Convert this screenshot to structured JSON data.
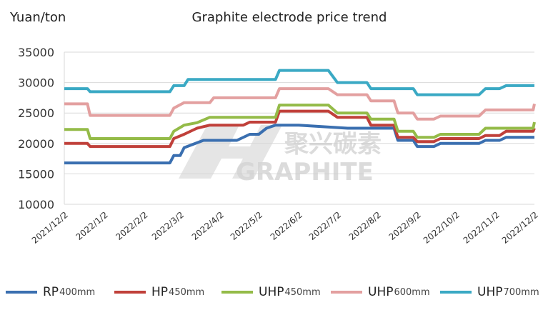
{
  "chart_data": {
    "type": "line",
    "title": "Graphite electrode price trend",
    "ylabel": "Yuan/ton",
    "xlabel": "",
    "ylim": [
      10000,
      35000
    ],
    "yticks": [
      10000,
      15000,
      20000,
      25000,
      30000,
      35000
    ],
    "xticks": [
      "2021/12/2",
      "2022/1/2",
      "2022/2/2",
      "2022/3/2",
      "2022/4/2",
      "2022/5/2",
      "2022/6/2",
      "2022/7/2",
      "2022/8/2",
      "2022/9/2",
      "2022/10/2",
      "2022/11/2",
      "2022/12/2"
    ],
    "grid": "horizontal",
    "legend_position": "bottom",
    "series": [
      {
        "name": "RP",
        "size": "400mm",
        "color": "#3a6fb0",
        "points": [
          [
            "2021/12/2",
            16800
          ],
          [
            "2022/2/22",
            16800
          ],
          [
            "2022/2/25",
            18000
          ],
          [
            "2022/3/2",
            18000
          ],
          [
            "2022/3/5",
            19300
          ],
          [
            "2022/3/20",
            20500
          ],
          [
            "2022/4/15",
            20500
          ],
          [
            "2022/4/25",
            21500
          ],
          [
            "2022/5/2",
            21500
          ],
          [
            "2022/5/8",
            22500
          ],
          [
            "2022/5/15",
            23000
          ],
          [
            "2022/6/2",
            23000
          ],
          [
            "2022/7/10",
            22500
          ],
          [
            "2022/8/15",
            22500
          ],
          [
            "2022/8/18",
            20500
          ],
          [
            "2022/8/30",
            20500
          ],
          [
            "2022/9/2",
            19500
          ],
          [
            "2022/9/15",
            19500
          ],
          [
            "2022/9/20",
            20000
          ],
          [
            "2022/10/20",
            20000
          ],
          [
            "2022/10/25",
            20500
          ],
          [
            "2022/11/5",
            20500
          ],
          [
            "2022/11/10",
            21000
          ],
          [
            "2022/12/2",
            21000
          ]
        ]
      },
      {
        "name": "HP",
        "size": "450mm",
        "color": "#c0403a",
        "points": [
          [
            "2021/12/2",
            20000
          ],
          [
            "2021/12/20",
            20000
          ],
          [
            "2021/12/22",
            19500
          ],
          [
            "2022/2/22",
            19500
          ],
          [
            "2022/2/25",
            20800
          ],
          [
            "2022/3/5",
            21500
          ],
          [
            "2022/3/15",
            22500
          ],
          [
            "2022/3/25",
            23000
          ],
          [
            "2022/4/20",
            23000
          ],
          [
            "2022/4/25",
            23500
          ],
          [
            "2022/5/15",
            23500
          ],
          [
            "2022/5/18",
            25300
          ],
          [
            "2022/6/25",
            25300
          ],
          [
            "2022/7/2",
            24300
          ],
          [
            "2022/7/25",
            24300
          ],
          [
            "2022/7/28",
            23000
          ],
          [
            "2022/8/15",
            23000
          ],
          [
            "2022/8/18",
            21000
          ],
          [
            "2022/8/30",
            21000
          ],
          [
            "2022/9/2",
            20300
          ],
          [
            "2022/9/15",
            20300
          ],
          [
            "2022/9/20",
            20800
          ],
          [
            "2022/10/20",
            20800
          ],
          [
            "2022/10/25",
            21300
          ],
          [
            "2022/11/5",
            21300
          ],
          [
            "2022/11/10",
            22000
          ],
          [
            "2022/12/1",
            22000
          ],
          [
            "2022/12/2",
            22500
          ]
        ]
      },
      {
        "name": "UHP",
        "size": "450mm",
        "color": "#94bb48",
        "points": [
          [
            "2021/12/2",
            22300
          ],
          [
            "2021/12/20",
            22300
          ],
          [
            "2021/12/22",
            20800
          ],
          [
            "2022/2/22",
            20800
          ],
          [
            "2022/2/25",
            22000
          ],
          [
            "2022/3/5",
            23000
          ],
          [
            "2022/3/15",
            23400
          ],
          [
            "2022/3/25",
            24300
          ],
          [
            "2022/4/20",
            24300
          ],
          [
            "2022/5/15",
            24300
          ],
          [
            "2022/5/18",
            26300
          ],
          [
            "2022/6/25",
            26300
          ],
          [
            "2022/7/2",
            25000
          ],
          [
            "2022/7/25",
            25000
          ],
          [
            "2022/7/28",
            24000
          ],
          [
            "2022/8/15",
            24000
          ],
          [
            "2022/8/18",
            22000
          ],
          [
            "2022/8/30",
            22000
          ],
          [
            "2022/9/2",
            21000
          ],
          [
            "2022/9/15",
            21000
          ],
          [
            "2022/9/20",
            21500
          ],
          [
            "2022/10/20",
            21500
          ],
          [
            "2022/10/25",
            22500
          ],
          [
            "2022/12/1",
            22500
          ],
          [
            "2022/12/2",
            23500
          ]
        ]
      },
      {
        "name": "UHP",
        "size": "600mm",
        "color": "#e3a0a0",
        "points": [
          [
            "2021/12/2",
            26500
          ],
          [
            "2021/12/20",
            26500
          ],
          [
            "2021/12/22",
            24600
          ],
          [
            "2022/2/22",
            24600
          ],
          [
            "2022/2/25",
            25800
          ],
          [
            "2022/3/5",
            26700
          ],
          [
            "2022/3/25",
            26700
          ],
          [
            "2022/3/28",
            27500
          ],
          [
            "2022/5/15",
            27500
          ],
          [
            "2022/5/18",
            29000
          ],
          [
            "2022/6/25",
            29000
          ],
          [
            "2022/7/2",
            28000
          ],
          [
            "2022/7/25",
            28000
          ],
          [
            "2022/7/28",
            27000
          ],
          [
            "2022/8/15",
            27000
          ],
          [
            "2022/8/18",
            25000
          ],
          [
            "2022/8/30",
            25000
          ],
          [
            "2022/9/2",
            24000
          ],
          [
            "2022/9/15",
            24000
          ],
          [
            "2022/9/20",
            24500
          ],
          [
            "2022/10/20",
            24500
          ],
          [
            "2022/10/25",
            25500
          ],
          [
            "2022/12/1",
            25500
          ],
          [
            "2022/12/2",
            26500
          ]
        ]
      },
      {
        "name": "UHP",
        "size": "700mm",
        "color": "#3aa9c4",
        "points": [
          [
            "2021/12/2",
            29000
          ],
          [
            "2021/12/20",
            29000
          ],
          [
            "2021/12/22",
            28500
          ],
          [
            "2022/2/22",
            28500
          ],
          [
            "2022/2/25",
            29500
          ],
          [
            "2022/3/5",
            29500
          ],
          [
            "2022/3/8",
            30500
          ],
          [
            "2022/5/15",
            30500
          ],
          [
            "2022/5/18",
            32000
          ],
          [
            "2022/6/25",
            32000
          ],
          [
            "2022/7/2",
            30000
          ],
          [
            "2022/7/25",
            30000
          ],
          [
            "2022/7/28",
            29000
          ],
          [
            "2022/8/30",
            29000
          ],
          [
            "2022/9/2",
            28000
          ],
          [
            "2022/10/20",
            28000
          ],
          [
            "2022/10/25",
            29000
          ],
          [
            "2022/11/5",
            29000
          ],
          [
            "2022/11/10",
            29500
          ],
          [
            "2022/12/2",
            29500
          ]
        ]
      }
    ],
    "watermark": {
      "cn": "聚兴碳素",
      "en": "GRAPHITE"
    }
  }
}
